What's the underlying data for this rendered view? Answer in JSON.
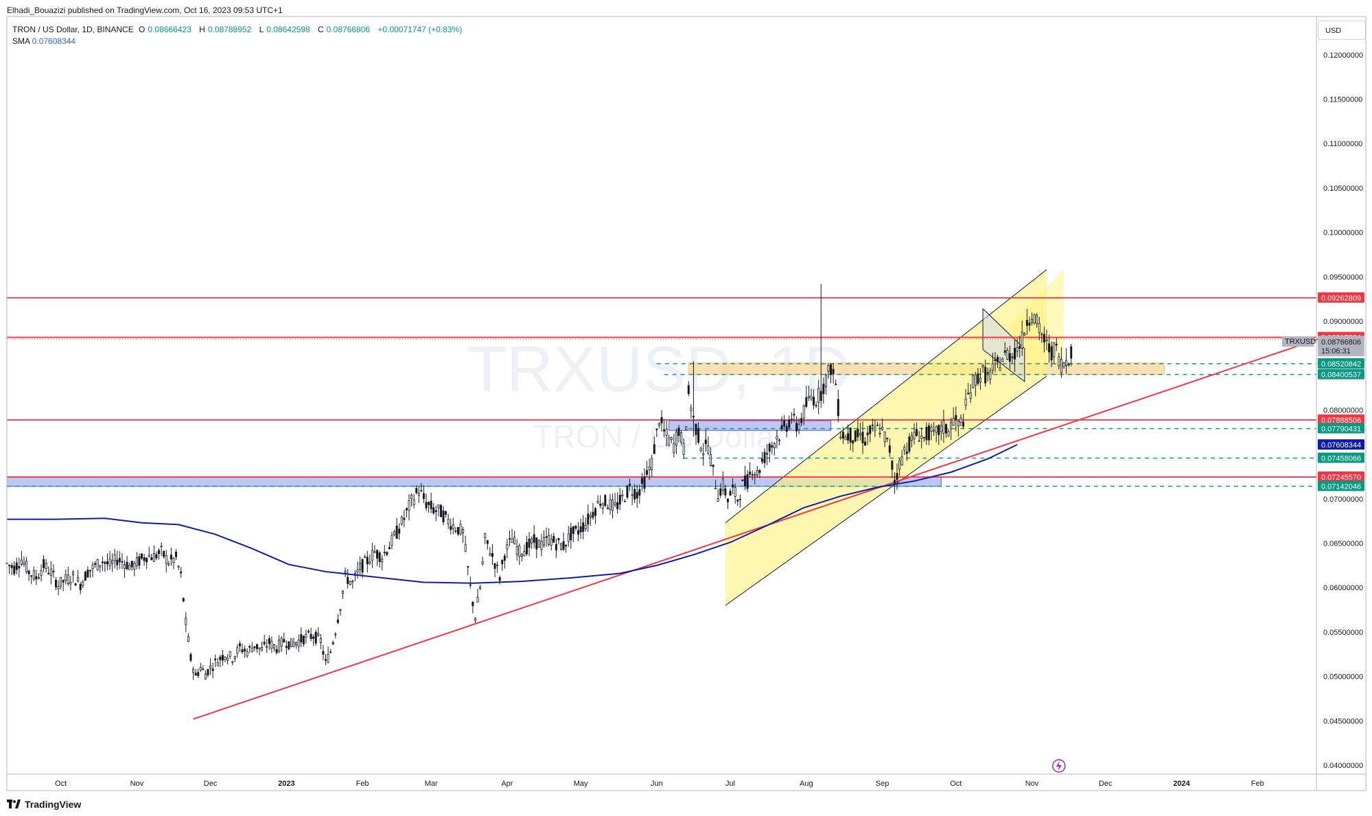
{
  "header": {
    "publisher": "Elhadi_Bouazizi published on TradingView.com, Oct 16, 2023 09:53 UTC+1"
  },
  "legend": {
    "symbol": "TRON / US Dollar, 1D, BINANCE",
    "open_label": "O",
    "open": "0.08666423",
    "high_label": "H",
    "high": "0.08788952",
    "low_label": "L",
    "low": "0.08642598",
    "close_label": "C",
    "close": "0.08766806",
    "change": "+0.00071747 (+0.83%)",
    "sma_label": "SMA",
    "sma_value": "0.07608344"
  },
  "currency_button": "USD",
  "watermark": {
    "symbol": "TRXUSD, 1D",
    "name": "TRON / US Dollar"
  },
  "brand": "TradingView",
  "symbol_tag": "TRXUSD",
  "countdown": "15:06:31",
  "colors": {
    "red_line": "#f23645",
    "sma_line": "#0d1ba8",
    "green_dashed": "#089981",
    "channel_fill": "#fff27a",
    "zone_orange": "#fbd59a",
    "zone_blue": "#a8b4ee",
    "candle": "#131722"
  },
  "chart_data": {
    "type": "candlestick",
    "symbol": "TRXUSD",
    "timeframe": "1D",
    "exchange": "BINANCE",
    "y_axis": {
      "min": 0.039,
      "max": 0.124,
      "ticks": [
        "0.12000000",
        "0.11500000",
        "0.11000000",
        "0.10500000",
        "0.10000000",
        "0.09500000",
        "0.09000000",
        "0.08000000",
        "0.07000000",
        "0.06500000",
        "0.06000000",
        "0.05500000",
        "0.05000000",
        "0.04500000",
        "0.04000000"
      ],
      "tick_values": [
        0.12,
        0.115,
        0.11,
        0.105,
        0.1,
        0.095,
        0.09,
        0.08,
        0.07,
        0.065,
        0.06,
        0.055,
        0.05,
        0.045,
        0.04
      ]
    },
    "x_axis": {
      "ticks": [
        "Oct",
        "Nov",
        "Dec",
        "2023",
        "Feb",
        "Mar",
        "Apr",
        "May",
        "Jun",
        "Jul",
        "Aug",
        "Sep",
        "Oct",
        "Nov",
        "Dec",
        "2024",
        "Feb"
      ],
      "tick_days": [
        22,
        53,
        83,
        114,
        145,
        173,
        204,
        234,
        265,
        295,
        326,
        357,
        387,
        418,
        448,
        479,
        510
      ]
    },
    "price_tags": [
      {
        "value": "0.09262809",
        "price": 0.09262809,
        "kind": "red"
      },
      {
        "value": "0.08817824",
        "price": 0.08817824,
        "kind": "red"
      },
      {
        "value": "0.08766806",
        "price": 0.08766806,
        "kind": "current"
      },
      {
        "value": "0.08520842",
        "price": 0.08520842,
        "kind": "green"
      },
      {
        "value": "0.08400537",
        "price": 0.08400537,
        "kind": "green"
      },
      {
        "value": "0.07888506",
        "price": 0.07888506,
        "kind": "red"
      },
      {
        "value": "0.07790431",
        "price": 0.07790431,
        "kind": "green"
      },
      {
        "value": "0.07608344",
        "price": 0.07608344,
        "kind": "sma"
      },
      {
        "value": "0.07458066",
        "price": 0.07458066,
        "kind": "green"
      },
      {
        "value": "0.07245570",
        "price": 0.0724557,
        "kind": "red"
      },
      {
        "value": "0.07142046",
        "price": 0.07142046,
        "kind": "green"
      }
    ],
    "horizontal_lines": [
      {
        "price": 0.09262809,
        "style": "solid",
        "color": "red"
      },
      {
        "price": 0.08817824,
        "style": "solid",
        "color": "red"
      },
      {
        "price": 0.07888506,
        "style": "solid",
        "color": "red"
      },
      {
        "price": 0.0724557,
        "style": "solid",
        "color": "red"
      },
      {
        "price": 0.08520842,
        "style": "dashed",
        "color": "green",
        "start_day": 265
      },
      {
        "price": 0.08400537,
        "style": "dashed",
        "color": "green",
        "start_day": 268
      },
      {
        "price": 0.07790431,
        "style": "dashed",
        "color": "green",
        "start_day": 278
      },
      {
        "price": 0.07458066,
        "style": "dashed",
        "color": "green",
        "start_day": 276
      },
      {
        "price": 0.07142046,
        "style": "dashed",
        "color": "green",
        "start_day": 0
      }
    ],
    "zones": [
      {
        "from_day": 278,
        "to_day": 472,
        "top": 0.0853,
        "bottom": 0.084,
        "color": "orange"
      },
      {
        "from_day": 270,
        "to_day": 336,
        "top": 0.0788,
        "bottom": 0.0777,
        "color": "blue"
      },
      {
        "from_day": 0,
        "to_day": 381,
        "top": 0.07245,
        "bottom": 0.0714,
        "color": "blue"
      }
    ],
    "trendline": {
      "from": {
        "day": 76,
        "price": 0.0452
      },
      "to": {
        "day": 535,
        "price": 0.088
      }
    },
    "channel": {
      "lower": [
        {
          "day": 293,
          "price": 0.058
        },
        {
          "day": 424,
          "price": 0.0838
        }
      ],
      "upper": [
        {
          "day": 293,
          "price": 0.0673
        },
        {
          "day": 424,
          "price": 0.0958
        }
      ],
      "right_edge_day": 424
    },
    "flag": {
      "points": [
        [
          398,
          0.0914
        ],
        [
          415,
          0.0869
        ],
        [
          415,
          0.0832
        ],
        [
          398,
          0.0868
        ]
      ]
    },
    "sma": [
      [
        0,
        0.0677
      ],
      [
        20,
        0.0677
      ],
      [
        40,
        0.0678
      ],
      [
        55,
        0.0673
      ],
      [
        70,
        0.0671
      ],
      [
        85,
        0.066
      ],
      [
        100,
        0.0644
      ],
      [
        115,
        0.0626
      ],
      [
        130,
        0.0618
      ],
      [
        150,
        0.0612
      ],
      [
        170,
        0.0606
      ],
      [
        190,
        0.0605
      ],
      [
        210,
        0.0607
      ],
      [
        230,
        0.0611
      ],
      [
        250,
        0.0616
      ],
      [
        265,
        0.0625
      ],
      [
        280,
        0.0637
      ],
      [
        295,
        0.0651
      ],
      [
        310,
        0.067
      ],
      [
        325,
        0.069
      ],
      [
        340,
        0.0703
      ],
      [
        355,
        0.0713
      ],
      [
        370,
        0.072
      ],
      [
        385,
        0.073
      ],
      [
        400,
        0.0745
      ],
      [
        412,
        0.0761
      ]
    ],
    "closes": [
      [
        0,
        0.0627
      ],
      [
        3,
        0.0622
      ],
      [
        6,
        0.0632
      ],
      [
        9,
        0.0618
      ],
      [
        12,
        0.0611
      ],
      [
        15,
        0.0625
      ],
      [
        18,
        0.0617
      ],
      [
        21,
        0.0603
      ],
      [
        24,
        0.0609
      ],
      [
        27,
        0.0612
      ],
      [
        30,
        0.0604
      ],
      [
        33,
        0.0618
      ],
      [
        36,
        0.0624
      ],
      [
        39,
        0.063
      ],
      [
        42,
        0.0625
      ],
      [
        45,
        0.0632
      ],
      [
        48,
        0.0628
      ],
      [
        51,
        0.0623
      ],
      [
        54,
        0.063
      ],
      [
        57,
        0.0636
      ],
      [
        60,
        0.0635
      ],
      [
        63,
        0.064
      ],
      [
        66,
        0.0629
      ],
      [
        69,
        0.0633
      ],
      [
        71,
        0.0613
      ],
      [
        73,
        0.056
      ],
      [
        75,
        0.052
      ],
      [
        77,
        0.05
      ],
      [
        79,
        0.051
      ],
      [
        81,
        0.0503
      ],
      [
        83,
        0.051
      ],
      [
        86,
        0.0518
      ],
      [
        89,
        0.0525
      ],
      [
        92,
        0.0521
      ],
      [
        95,
        0.0532
      ],
      [
        98,
        0.0528
      ],
      [
        101,
        0.0535
      ],
      [
        104,
        0.053
      ],
      [
        107,
        0.0538
      ],
      [
        110,
        0.0532
      ],
      [
        113,
        0.054
      ],
      [
        116,
        0.0536
      ],
      [
        119,
        0.054
      ],
      [
        122,
        0.0544
      ],
      [
        125,
        0.0546
      ],
      [
        128,
        0.054
      ],
      [
        130,
        0.0515
      ],
      [
        132,
        0.0528
      ],
      [
        134,
        0.0552
      ],
      [
        136,
        0.058
      ],
      [
        138,
        0.0612
      ],
      [
        141,
        0.0605
      ],
      [
        144,
        0.0622
      ],
      [
        147,
        0.063
      ],
      [
        150,
        0.064
      ],
      [
        153,
        0.0635
      ],
      [
        156,
        0.0647
      ],
      [
        159,
        0.0662
      ],
      [
        162,
        0.0678
      ],
      [
        165,
        0.0697
      ],
      [
        168,
        0.071
      ],
      [
        171,
        0.0695
      ],
      [
        174,
        0.0688
      ],
      [
        177,
        0.0685
      ],
      [
        180,
        0.0675
      ],
      [
        183,
        0.0668
      ],
      [
        186,
        0.0662
      ],
      [
        189,
        0.06
      ],
      [
        191,
        0.0567
      ],
      [
        193,
        0.06
      ],
      [
        195,
        0.0654
      ],
      [
        197,
        0.0642
      ],
      [
        199,
        0.0628
      ],
      [
        201,
        0.0612
      ],
      [
        203,
        0.0638
      ],
      [
        206,
        0.0655
      ],
      [
        209,
        0.064
      ],
      [
        212,
        0.0645
      ],
      [
        215,
        0.0652
      ],
      [
        218,
        0.0648
      ],
      [
        221,
        0.0655
      ],
      [
        224,
        0.065
      ],
      [
        227,
        0.0647
      ],
      [
        230,
        0.066
      ],
      [
        233,
        0.0664
      ],
      [
        236,
        0.0672
      ],
      [
        239,
        0.0685
      ],
      [
        242,
        0.0698
      ],
      [
        245,
        0.0695
      ],
      [
        248,
        0.069
      ],
      [
        251,
        0.07
      ],
      [
        254,
        0.0712
      ],
      [
        257,
        0.0706
      ],
      [
        260,
        0.072
      ],
      [
        263,
        0.074
      ],
      [
        266,
        0.079
      ],
      [
        268,
        0.0775
      ],
      [
        270,
        0.0766
      ],
      [
        272,
        0.076
      ],
      [
        274,
        0.0778
      ],
      [
        276,
        0.0756
      ],
      [
        278,
        0.0818
      ],
      [
        280,
        0.079
      ],
      [
        282,
        0.077
      ],
      [
        284,
        0.0755
      ],
      [
        286,
        0.076
      ],
      [
        288,
        0.073
      ],
      [
        290,
        0.0705
      ],
      [
        292,
        0.0715
      ],
      [
        294,
        0.07
      ],
      [
        296,
        0.071
      ],
      [
        298,
        0.07
      ],
      [
        300,
        0.0715
      ],
      [
        302,
        0.072
      ],
      [
        304,
        0.0735
      ],
      [
        306,
        0.0728
      ],
      [
        308,
        0.0742
      ],
      [
        310,
        0.0752
      ],
      [
        312,
        0.076
      ],
      [
        314,
        0.077
      ],
      [
        316,
        0.0775
      ],
      [
        318,
        0.0783
      ],
      [
        320,
        0.0792
      ],
      [
        322,
        0.078
      ],
      [
        324,
        0.079
      ],
      [
        326,
        0.0805
      ],
      [
        328,
        0.0815
      ],
      [
        330,
        0.0812
      ],
      [
        332,
        0.082
      ],
      [
        334,
        0.0835
      ],
      [
        336,
        0.0848
      ],
      [
        338,
        0.083
      ],
      [
        340,
        0.0775
      ],
      [
        342,
        0.077
      ],
      [
        344,
        0.0772
      ],
      [
        346,
        0.0768
      ],
      [
        348,
        0.0772
      ],
      [
        350,
        0.0766
      ],
      [
        352,
        0.0775
      ],
      [
        354,
        0.0776
      ],
      [
        356,
        0.078
      ],
      [
        358,
        0.077
      ],
      [
        360,
        0.0755
      ],
      [
        362,
        0.072
      ],
      [
        364,
        0.0738
      ],
      [
        366,
        0.0755
      ],
      [
        368,
        0.0762
      ],
      [
        370,
        0.077
      ],
      [
        372,
        0.0773
      ],
      [
        374,
        0.0768
      ],
      [
        376,
        0.0775
      ],
      [
        378,
        0.077
      ],
      [
        380,
        0.0776
      ],
      [
        382,
        0.078
      ],
      [
        384,
        0.0777
      ],
      [
        386,
        0.079
      ],
      [
        388,
        0.0782
      ],
      [
        390,
        0.079
      ],
      [
        392,
        0.0816
      ],
      [
        394,
        0.083
      ],
      [
        396,
        0.0838
      ],
      [
        398,
        0.0842
      ],
      [
        400,
        0.0837
      ],
      [
        402,
        0.0845
      ],
      [
        404,
        0.085
      ],
      [
        406,
        0.0858
      ],
      [
        408,
        0.0863
      ],
      [
        410,
        0.0862
      ],
      [
        412,
        0.087
      ],
      [
        414,
        0.0878
      ],
      [
        416,
        0.0902
      ],
      [
        418,
        0.0909
      ],
      [
        420,
        0.0897
      ],
      [
        422,
        0.0885
      ],
      [
        424,
        0.0872
      ],
      [
        426,
        0.0866
      ],
      [
        428,
        0.0868
      ],
      [
        430,
        0.0852
      ],
      [
        432,
        0.0856
      ],
      [
        434,
        0.0866
      ],
      [
        435,
        0.0877
      ]
    ]
  }
}
